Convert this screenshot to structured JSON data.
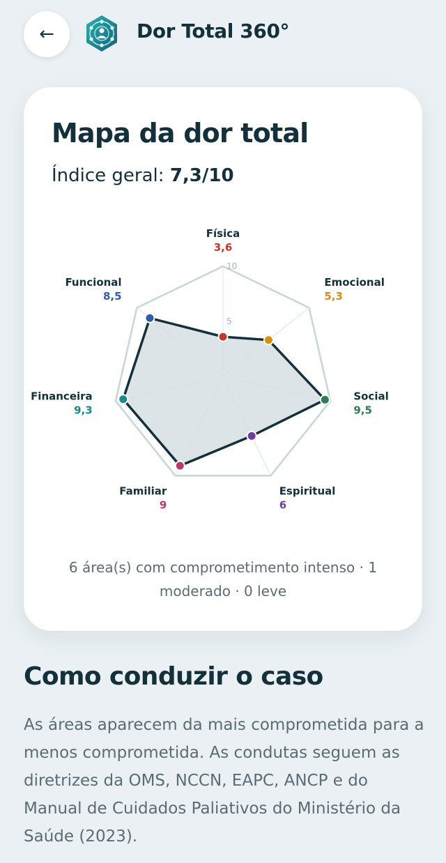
{
  "header": {
    "back_label": "←",
    "back_icon": "back-arrow-icon",
    "logo_icon": "network-person-logo-icon",
    "app_title": "Dor Total 360°"
  },
  "card": {
    "title": "Mapa da dor total",
    "index_label": "Índice geral: ",
    "index_value": "7,3/10",
    "summary": "6 área(s) com comprometimento intenso · 1 moderado · 0 leve"
  },
  "chart_data": {
    "type": "radar",
    "rmax": 10,
    "ticks": [
      {
        "value": 5,
        "label": "5"
      },
      {
        "value": 10,
        "label": "10"
      }
    ],
    "axes": [
      {
        "name": "Física",
        "value": 3.6,
        "label": "3,6",
        "color": "#c0392b"
      },
      {
        "name": "Emocional",
        "value": 5.3,
        "label": "5,3",
        "color": "#d4900e"
      },
      {
        "name": "Social",
        "value": 9.5,
        "label": "9,5",
        "color": "#2e7d4f"
      },
      {
        "name": "Espiritual",
        "value": 6,
        "label": "6",
        "color": "#6a3fa0"
      },
      {
        "name": "Familiar",
        "value": 9,
        "label": "9",
        "color": "#b8386e"
      },
      {
        "name": "Financeira",
        "value": 9.3,
        "label": "9,3",
        "color": "#1b8a8a"
      },
      {
        "name": "Funcional",
        "value": 8.5,
        "label": "8,5",
        "color": "#2f5ea8"
      }
    ]
  },
  "section": {
    "title": "Como conduzir o caso",
    "body": "As áreas aparecem da mais comprometida para a menos comprometida. As condutas seguem as diretrizes da OMS, NCCN, EAPC, ANCP e do Manual de Cuidados Paliativos do Ministério da Saúde (2023)."
  },
  "colors": {
    "background": "#eaf0f3",
    "primary_text": "#14303b",
    "muted_text": "#5b6c73",
    "radar_fill": "#d7dfe3",
    "radar_line": "#14303b",
    "grid": "#c9d6dc"
  }
}
